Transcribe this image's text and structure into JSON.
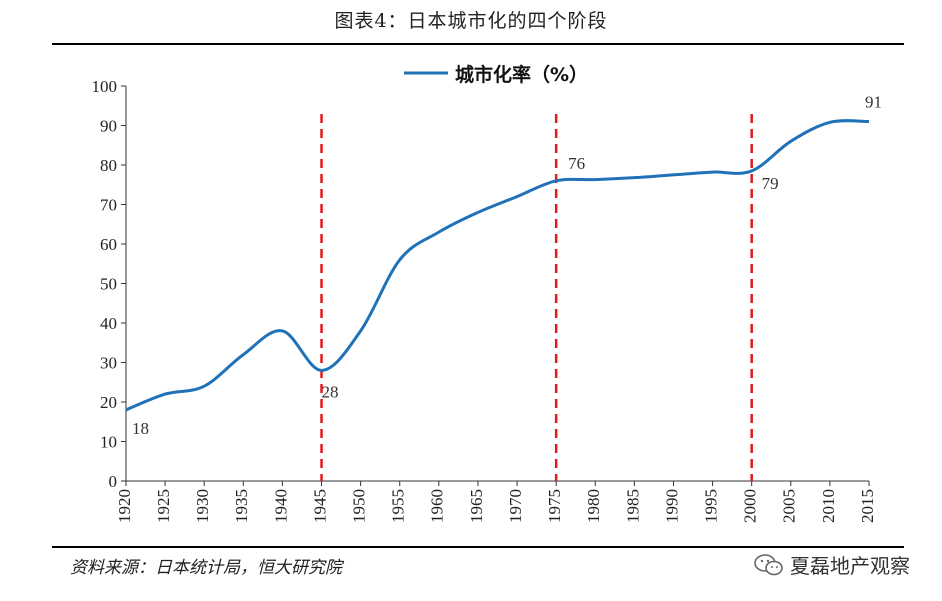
{
  "figure_title": "图表4：日本城市化的四个阶段",
  "source_text": "资料来源：日本统计局，恒大研究院",
  "watermark_text": "夏磊地产观察",
  "watermark_icon": "wechat-icon",
  "colors": {
    "line": "#1f72b8",
    "divider": "#e31a1c",
    "axis": "#333333"
  },
  "chart_data": {
    "type": "line",
    "title": "",
    "xlabel": "",
    "ylabel": "",
    "x": [
      "1920",
      "1925",
      "1930",
      "1935",
      "1940",
      "1945",
      "1950",
      "1955",
      "1960",
      "1965",
      "1970",
      "1975",
      "1980",
      "1985",
      "1990",
      "1995",
      "2000",
      "2005",
      "2010",
      "2015"
    ],
    "ylim": [
      0,
      100
    ],
    "yticks": [
      "0",
      "10",
      "20",
      "30",
      "40",
      "50",
      "60",
      "70",
      "80",
      "90",
      "100"
    ],
    "legend_position": "top-center",
    "grid": false,
    "series": [
      {
        "name": "城市化率（%）",
        "values": [
          18,
          22,
          24,
          32,
          38,
          28,
          38,
          56,
          63,
          68,
          72,
          76,
          76.3,
          76.8,
          77.5,
          78.2,
          78.5,
          86,
          90.8,
          91
        ]
      }
    ],
    "data_labels": [
      {
        "x": "1920",
        "text": "18"
      },
      {
        "x": "1945",
        "text": "28"
      },
      {
        "x": "1975",
        "text": "76"
      },
      {
        "x": "2000",
        "text": "79"
      },
      {
        "x": "2015",
        "text": "91"
      }
    ],
    "dividers": [
      "1945",
      "1975",
      "2000"
    ]
  }
}
